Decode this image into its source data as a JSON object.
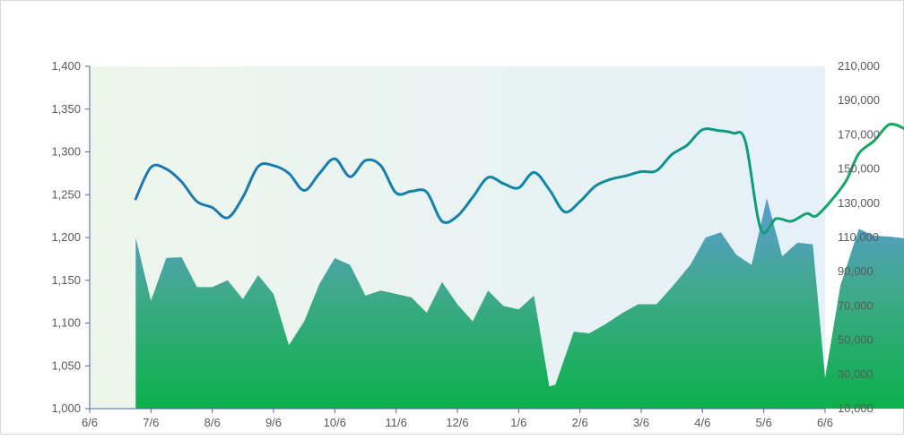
{
  "chart_data": {
    "type": "line+area",
    "title": "",
    "x_ticks": [
      "6/6",
      "7/6",
      "8/6",
      "9/6",
      "10/6",
      "11/6",
      "12/6",
      "1/6",
      "2/6",
      "3/6",
      "4/6",
      "5/6",
      "6/6"
    ],
    "left_axis": {
      "ylim": [
        1000,
        1400
      ],
      "ticks": [
        "1,000",
        "1,050",
        "1,100",
        "1,150",
        "1,200",
        "1,250",
        "1,300",
        "1,350",
        "1,400"
      ]
    },
    "right_axis": {
      "ylim": [
        10000,
        210000
      ],
      "ticks": [
        "10,000",
        "30,000",
        "50,000",
        "70,000",
        "90,000",
        "110,000",
        "130,000",
        "150,000",
        "170,000",
        "190,000",
        "210,000"
      ]
    },
    "series": [
      {
        "axis": "right",
        "kind": "area",
        "points": [
          [
            0.75,
            110000
          ],
          [
            1.0,
            73000
          ],
          [
            1.25,
            98000
          ],
          [
            1.5,
            98500
          ],
          [
            1.75,
            81000
          ],
          [
            2.0,
            81000
          ],
          [
            2.25,
            85000
          ],
          [
            2.5,
            74000
          ],
          [
            2.75,
            88000
          ],
          [
            3.0,
            77000
          ],
          [
            3.25,
            47000
          ],
          [
            3.5,
            61000
          ],
          [
            3.75,
            83000
          ],
          [
            4.0,
            98000
          ],
          [
            4.25,
            94000
          ],
          [
            4.5,
            76000
          ],
          [
            4.75,
            79000
          ],
          [
            5.0,
            77000
          ],
          [
            5.25,
            75000
          ],
          [
            5.5,
            66000
          ],
          [
            5.75,
            84000
          ],
          [
            6.0,
            71000
          ],
          [
            6.25,
            61000
          ],
          [
            6.5,
            79000
          ],
          [
            6.75,
            70000
          ],
          [
            7.0,
            68000
          ],
          [
            7.25,
            76000
          ],
          [
            7.5,
            23000
          ],
          [
            7.6,
            24000
          ],
          [
            7.9,
            55000
          ],
          [
            8.15,
            54000
          ],
          [
            8.4,
            59000
          ],
          [
            8.7,
            66000
          ],
          [
            8.95,
            71000
          ],
          [
            9.25,
            71000
          ],
          [
            9.5,
            81000
          ],
          [
            9.8,
            94000
          ],
          [
            10.05,
            110000
          ],
          [
            10.3,
            113000
          ],
          [
            10.55,
            100000
          ],
          [
            10.8,
            94000
          ],
          [
            11.05,
            133000
          ],
          [
            11.3,
            99000
          ],
          [
            11.55,
            107000
          ],
          [
            11.8,
            106000
          ],
          [
            12.0,
            28000
          ],
          [
            12.25,
            82000
          ],
          [
            12.55,
            115000
          ],
          [
            12.8,
            111000
          ],
          [
            13.05,
            110500
          ],
          [
            13.3,
            109500
          ]
        ]
      },
      {
        "axis": "left",
        "kind": "line",
        "points": [
          [
            0.75,
            1245
          ],
          [
            1.0,
            1282
          ],
          [
            1.25,
            1280
          ],
          [
            1.5,
            1265
          ],
          [
            1.75,
            1242
          ],
          [
            2.0,
            1235
          ],
          [
            2.25,
            1223
          ],
          [
            2.5,
            1247
          ],
          [
            2.75,
            1283
          ],
          [
            3.0,
            1284
          ],
          [
            3.25,
            1275
          ],
          [
            3.5,
            1255
          ],
          [
            3.75,
            1275
          ],
          [
            4.0,
            1292
          ],
          [
            4.25,
            1271
          ],
          [
            4.5,
            1290
          ],
          [
            4.75,
            1284
          ],
          [
            5.0,
            1252
          ],
          [
            5.25,
            1254
          ],
          [
            5.5,
            1253
          ],
          [
            5.75,
            1219
          ],
          [
            6.0,
            1225
          ],
          [
            6.25,
            1247
          ],
          [
            6.5,
            1270
          ],
          [
            6.75,
            1263
          ],
          [
            7.0,
            1258
          ],
          [
            7.25,
            1276
          ],
          [
            7.5,
            1256
          ],
          [
            7.75,
            1230
          ],
          [
            8.0,
            1242
          ],
          [
            8.25,
            1260
          ],
          [
            8.5,
            1268
          ],
          [
            8.75,
            1272
          ],
          [
            9.0,
            1277
          ],
          [
            9.25,
            1278
          ],
          [
            9.5,
            1297
          ],
          [
            9.75,
            1308
          ],
          [
            10.0,
            1326
          ],
          [
            10.25,
            1325
          ],
          [
            10.5,
            1322
          ],
          [
            10.7,
            1312
          ],
          [
            10.95,
            1210
          ],
          [
            11.2,
            1222
          ],
          [
            11.45,
            1219
          ],
          [
            11.7,
            1228
          ],
          [
            11.85,
            1225
          ],
          [
            12.1,
            1243
          ],
          [
            12.35,
            1267
          ],
          [
            12.55,
            1298
          ],
          [
            12.8,
            1313
          ],
          [
            13.05,
            1332
          ],
          [
            13.3,
            1327
          ]
        ]
      }
    ]
  }
}
